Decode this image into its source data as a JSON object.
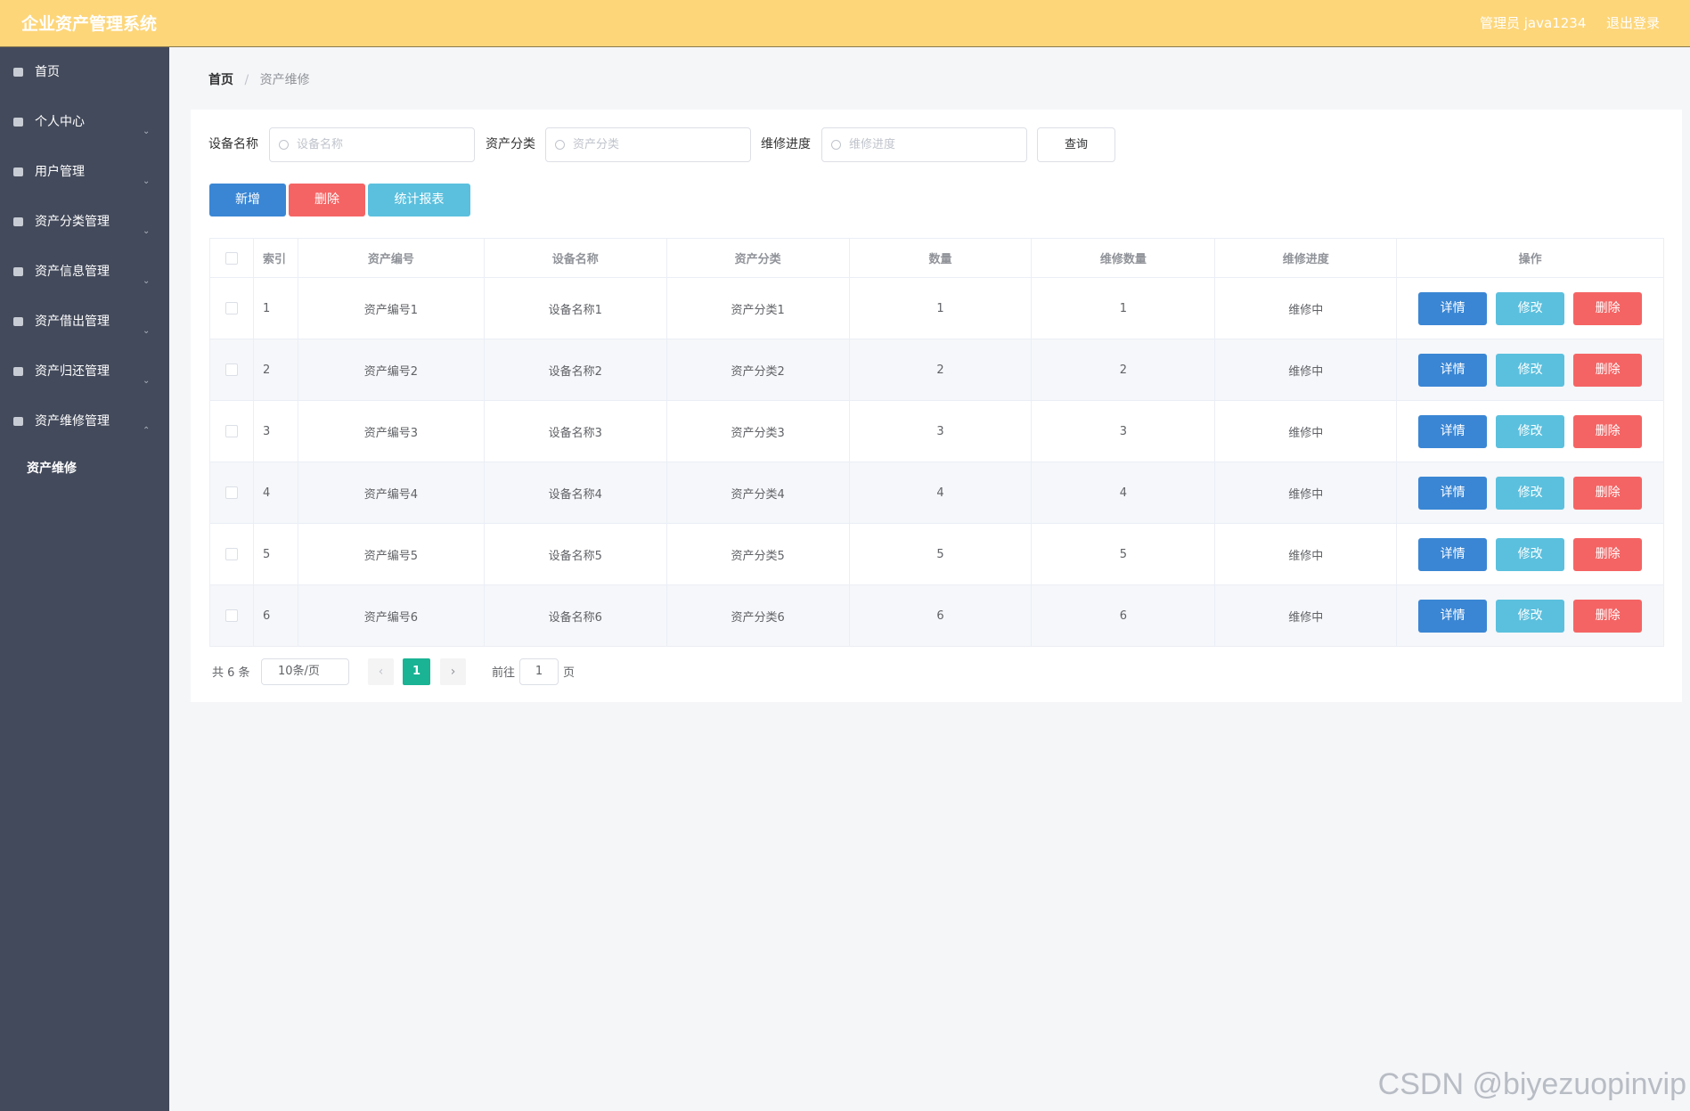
{
  "header": {
    "title": "企业资产管理系统",
    "user": "管理员 java1234",
    "logout": "退出登录"
  },
  "sidebar": {
    "items": [
      "首页",
      "个人中心",
      "用户管理",
      "资产分类管理",
      "资产信息管理",
      "资产借出管理",
      "资产归还管理",
      "资产维修管理"
    ],
    "submenu": "资产维修"
  },
  "breadcrumb": [
    "首页",
    "资产维修"
  ],
  "search": {
    "fields": [
      {
        "label": "设备名称",
        "placeholder": "设备名称"
      },
      {
        "label": "资产分类",
        "placeholder": "资产分类"
      },
      {
        "label": "维修进度",
        "placeholder": "维修进度"
      }
    ],
    "button": "查询"
  },
  "actions": [
    "新增",
    "删除",
    "统计报表"
  ],
  "table": {
    "columns": [
      "索引",
      "资产编号",
      "设备名称",
      "资产分类",
      "数量",
      "维修数量",
      "维修进度",
      "操作"
    ],
    "rows": [
      [
        1,
        "资产编号1",
        "设备名称1",
        "资产分类1",
        1,
        1,
        "维修中"
      ],
      [
        2,
        "资产编号2",
        "设备名称2",
        "资产分类2",
        2,
        2,
        "维修中"
      ],
      [
        3,
        "资产编号3",
        "设备名称3",
        "资产分类3",
        3,
        3,
        "维修中"
      ],
      [
        4,
        "资产编号4",
        "设备名称4",
        "资产分类4",
        4,
        4,
        "维修中"
      ],
      [
        5,
        "资产编号5",
        "设备名称5",
        "资产分类5",
        5,
        5,
        "维修中"
      ],
      [
        6,
        "资产编号6",
        "设备名称6",
        "资产分类6",
        6,
        6,
        "维修中"
      ]
    ],
    "row_actions": [
      "详情",
      "修改",
      "删除"
    ]
  },
  "pagination": {
    "total": "共 6 条",
    "page_size": "10条/页",
    "current": 1,
    "goto": "前往",
    "goto_value": 1,
    "page_unit": "页"
  },
  "watermark": "CSDN @biyezuopinvip"
}
